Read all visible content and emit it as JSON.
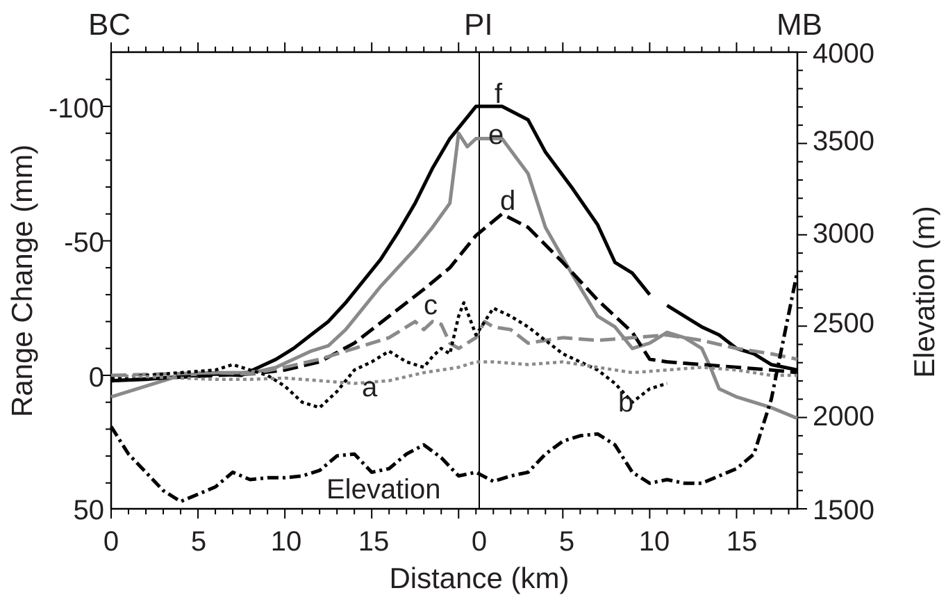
{
  "chart_data": {
    "type": "line",
    "top_labels": [
      "BC",
      "PI",
      "MB"
    ],
    "xlabel": "Distance (km)",
    "ylabel_left": "Range Change (mm)",
    "ylabel_right": "Elevation (m)",
    "x_ticks_left": [
      "0",
      "5",
      "10",
      "15",
      "0"
    ],
    "x_ticks_right": [
      "5",
      "10",
      "15"
    ],
    "y_ticks_left": [
      "-100",
      "-50",
      "0",
      "50"
    ],
    "y_ticks_right": [
      "4000",
      "3500",
      "3000",
      "2500",
      "2000",
      "1500"
    ],
    "ylim_left": [
      50,
      -120
    ],
    "ylim_right": [
      1500,
      4000
    ],
    "xlim": [
      0,
      39.5
    ],
    "x_note": "distance along profile; left half BC→PI (0–21 km), right half PI→MB (0–18 km, plotted at x+21)",
    "annotations": [
      "a",
      "b",
      "c",
      "d",
      "e",
      "f",
      "Elevation"
    ],
    "colors": {
      "black": "#000000",
      "gray": "#8a8a8a",
      "text": "#231f20"
    },
    "series": [
      {
        "name": "f",
        "color": "#000000",
        "style": "solid",
        "axis": "left",
        "x": [
          0,
          2,
          4,
          6,
          7.5,
          8.5,
          9.5,
          10.5,
          11.5,
          12.5,
          13.5,
          14.5,
          15.5,
          16.5,
          17.5,
          18.5,
          19.5,
          20.5,
          21,
          22.5,
          24,
          25,
          26.5,
          28,
          29,
          30,
          31,
          32,
          33,
          34,
          35,
          36,
          37,
          38,
          39.5
        ],
        "y": [
          2,
          1.5,
          0.5,
          -0.5,
          0,
          -3,
          -6,
          -10,
          -15,
          -20,
          -27,
          -35,
          -43,
          -53,
          -64,
          -77,
          -88,
          -96,
          -100,
          -100,
          -95,
          -83,
          -70,
          -56,
          -42,
          -38,
          -30,
          -26,
          -22,
          -18,
          -15,
          -10,
          -8,
          -4,
          -2
        ],
        "segments": [
          [
            0,
            26
          ],
          [
            27,
            34
          ]
        ]
      },
      {
        "name": "e",
        "color": "#8a8a8a",
        "style": "solid",
        "axis": "left",
        "x": [
          0,
          2,
          4,
          6,
          7.5,
          8.5,
          9.5,
          10.5,
          11.5,
          12.5,
          13.5,
          14.5,
          15.5,
          16.5,
          17.5,
          18.5,
          19.5,
          20,
          20.5,
          21,
          22.5,
          24,
          25,
          26.5,
          28,
          29,
          30,
          31,
          32,
          33,
          34,
          34.5,
          35,
          36,
          37,
          38,
          39.5
        ],
        "y": [
          8,
          4,
          0,
          -1,
          -1,
          -1.5,
          -3,
          -6,
          -9,
          -11,
          -17,
          -25,
          -33,
          -40,
          -47,
          -55,
          -64,
          -90,
          -85,
          -88,
          -88,
          -75,
          -55,
          -38,
          -22,
          -18,
          -10,
          -12,
          -16,
          -14,
          -10,
          -3,
          5,
          8,
          10,
          12,
          16
        ]
      },
      {
        "name": "d",
        "color": "#000000",
        "style": "dashed",
        "axis": "left",
        "x": [
          0,
          3,
          6,
          8,
          10,
          12,
          14,
          16,
          18,
          19.5,
          21,
          22.5,
          24,
          26,
          28,
          30,
          31,
          32,
          34,
          36,
          38,
          39.5
        ],
        "y": [
          2,
          1,
          0,
          -0.5,
          -2,
          -5,
          -12,
          -22,
          -32,
          -40,
          -52,
          -60,
          -55,
          -42,
          -28,
          -16,
          -6,
          -5,
          -4,
          -3,
          -2,
          -1
        ]
      },
      {
        "name": "c",
        "color": "#8a8a8a",
        "style": "dashed",
        "axis": "left",
        "x": [
          0,
          3,
          6,
          8,
          10,
          12,
          14,
          16,
          17,
          17.5,
          18,
          18.5,
          19,
          19.5,
          20,
          21,
          21.5,
          22,
          23,
          24,
          26,
          28,
          30,
          32,
          34,
          36,
          38,
          39.5
        ],
        "y": [
          0,
          -0.5,
          -1,
          -0.5,
          -3,
          -6,
          -10,
          -14,
          -18,
          -20,
          -17,
          -20,
          -19,
          -12,
          -10,
          -14,
          -20,
          -18,
          -17,
          -12,
          -14,
          -13,
          -14,
          -15,
          -13,
          -10,
          -8,
          -6
        ]
      },
      {
        "name": "b",
        "color": "#000000",
        "style": "dotted",
        "axis": "left",
        "x": [
          0,
          2,
          4,
          6,
          7,
          8,
          9,
          10,
          11,
          12,
          13,
          14,
          15,
          16,
          17,
          18,
          18.5,
          19,
          19.5,
          20,
          20.3,
          21,
          22,
          23,
          24,
          26,
          28,
          29,
          30,
          31,
          32
        ],
        "y": [
          1,
          0,
          -1,
          -2,
          -4,
          -2,
          0,
          4,
          10,
          12,
          6,
          -2,
          -5,
          -9,
          -5,
          -3,
          -7,
          -10,
          -8,
          -22,
          -27,
          -15,
          -25,
          -22,
          -18,
          -8,
          -2,
          3,
          10,
          5,
          3
        ]
      },
      {
        "name": "a",
        "color": "#8a8a8a",
        "style": "dotted",
        "axis": "left",
        "x": [
          0,
          2,
          4,
          6,
          8,
          10,
          12,
          14,
          16,
          18,
          20,
          21,
          22,
          24,
          26,
          28,
          30,
          32,
          34,
          36,
          38,
          39.5
        ],
        "y": [
          0,
          0.5,
          1,
          1.5,
          1.5,
          1,
          2,
          3,
          2,
          -1,
          -3,
          -5,
          -5,
          -4,
          -5,
          -3,
          -1,
          -2,
          -3,
          -2,
          0,
          0
        ]
      },
      {
        "name": "Elevation",
        "color": "#000000",
        "style": "dashdot",
        "axis": "right",
        "x": [
          0,
          1,
          2,
          3,
          4,
          5,
          6,
          7,
          8,
          9,
          10,
          11,
          12,
          13,
          14,
          15,
          16,
          17,
          18,
          19,
          20,
          21,
          22,
          23,
          24,
          25,
          26,
          27,
          28,
          29,
          30,
          31,
          32,
          33,
          34,
          35,
          36,
          37,
          38,
          39.5
        ],
        "y": [
          1950,
          1800,
          1700,
          1600,
          1540,
          1580,
          1620,
          1700,
          1660,
          1670,
          1670,
          1680,
          1710,
          1790,
          1800,
          1700,
          1720,
          1800,
          1850,
          1780,
          1680,
          1700,
          1650,
          1680,
          1700,
          1800,
          1870,
          1900,
          1910,
          1850,
          1700,
          1640,
          1660,
          1640,
          1640,
          1680,
          1720,
          1800,
          2100,
          2800
        ]
      }
    ]
  }
}
